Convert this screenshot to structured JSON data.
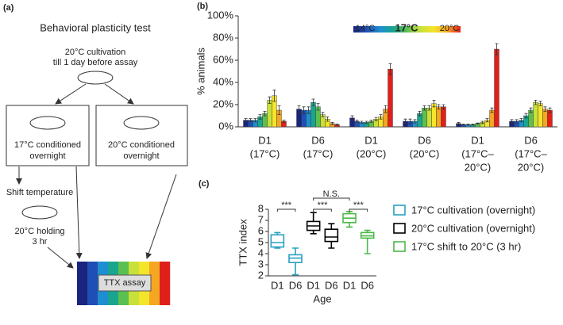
{
  "diagram": {
    "label": "(a)",
    "title": "Behavioral plasticity test",
    "start": [
      "20°C cultivation",
      "till 1 day before assay"
    ],
    "box1": [
      "17°C conditioned",
      "overnight"
    ],
    "box2": [
      "20°C conditioned",
      "overnight"
    ],
    "shift": "Shift temperature",
    "holding": [
      "20°C holding",
      "3 hr"
    ],
    "assay": "TTX assay"
  },
  "chart_data": [
    {
      "type": "bar",
      "panel_label": "(b)",
      "ylabel": "% animals",
      "ylim": [
        0,
        100
      ],
      "yticks": [
        {
          "value": 0,
          "label": "0%"
        },
        {
          "value": 20,
          "label": "20%"
        },
        {
          "value": 40,
          "label": "40%"
        },
        {
          "value": 60,
          "label": "60%"
        },
        {
          "value": 80,
          "label": "80%"
        },
        {
          "value": 100,
          "label": "100%"
        }
      ],
      "legend_labels": [
        "14°C",
        "17°C",
        "20°C"
      ],
      "categories": [
        [
          "D1",
          "(17°C)"
        ],
        [
          "D6",
          "(17°C)"
        ],
        [
          "D1",
          "(20°C)"
        ],
        [
          "D6",
          "(20°C)"
        ],
        [
          "D1",
          "(17°C‒",
          "20°C)"
        ],
        [
          "D6",
          "(17°C‒",
          "20°C)"
        ]
      ],
      "series": [
        {
          "color": "#1a237e",
          "values": [
            6,
            16,
            8,
            5,
            3,
            5
          ],
          "errors": [
            1.5,
            3,
            2,
            2,
            1,
            1.5
          ]
        },
        {
          "color": "#1f4fb5",
          "values": [
            6,
            15,
            5,
            5,
            2,
            5
          ],
          "errors": [
            1.5,
            3,
            1,
            2,
            0.5,
            1.5
          ]
        },
        {
          "color": "#1d8fd1",
          "values": [
            6,
            15,
            4,
            5,
            2,
            6
          ],
          "errors": [
            1.5,
            3,
            1,
            1.5,
            0.5,
            1.5
          ]
        },
        {
          "color": "#1aa58f",
          "values": [
            9,
            22,
            4,
            12,
            2,
            10
          ],
          "errors": [
            2,
            3,
            1,
            2,
            0.5,
            2
          ]
        },
        {
          "color": "#5cc050",
          "values": [
            12,
            18,
            5,
            17,
            3,
            15
          ],
          "errors": [
            2,
            3,
            1,
            2,
            0.5,
            2
          ]
        },
        {
          "color": "#c8e03a",
          "values": [
            24,
            11,
            7,
            17,
            4,
            22
          ],
          "errors": [
            3,
            2,
            1.5,
            2,
            1,
            2
          ]
        },
        {
          "color": "#f5e52a",
          "values": [
            28,
            7,
            9,
            21,
            6,
            21
          ],
          "errors": [
            5,
            2,
            2,
            3,
            1.5,
            2
          ]
        },
        {
          "color": "#f5a623",
          "values": [
            15,
            3,
            16,
            18,
            15,
            16
          ],
          "errors": [
            4,
            1,
            3,
            2,
            2,
            2
          ]
        },
        {
          "color": "#e0201b",
          "values": [
            5,
            2,
            52,
            18,
            70,
            15
          ],
          "errors": [
            1,
            0.5,
            5,
            2,
            5,
            2
          ]
        }
      ]
    },
    {
      "type": "box",
      "panel_label": "(c)",
      "ylabel": "TTX index",
      "xlabel": "Age",
      "ylim": [
        2,
        8
      ],
      "yticks": [
        2,
        3,
        4,
        5,
        6,
        7,
        8
      ],
      "categories": [
        "D1",
        "D6",
        "D1",
        "D6",
        "D1",
        "D6"
      ],
      "annotations": [
        "***",
        "***",
        "***",
        "N.S."
      ],
      "series": [
        {
          "name": "17°C cultivation (overnight)",
          "color": "#2aa0c0",
          "values": [
            {
              "min": 4.5,
              "q1": 4.6,
              "median": 5.0,
              "q3": 5.7,
              "max": 5.9
            },
            {
              "min": 2.1,
              "q1": 3.2,
              "median": 3.6,
              "q3": 3.9,
              "max": 4.5
            }
          ]
        },
        {
          "name": "20°C cultivation (overnight)",
          "color": "#000000",
          "values": [
            {
              "min": 5.8,
              "q1": 6.1,
              "median": 6.5,
              "q3": 6.9,
              "max": 7.7
            },
            {
              "min": 4.5,
              "q1": 5.1,
              "median": 5.5,
              "q3": 6.2,
              "max": 6.7
            }
          ]
        },
        {
          "name": "17°C shift to 20°C (3 hr)",
          "color": "#4cb848",
          "values": [
            {
              "min": 6.4,
              "q1": 6.8,
              "median": 7.2,
              "q3": 7.6,
              "max": 7.8
            },
            {
              "min": 4.0,
              "q1": 5.4,
              "median": 5.6,
              "q3": 5.9,
              "max": 6.1
            }
          ]
        }
      ]
    }
  ]
}
